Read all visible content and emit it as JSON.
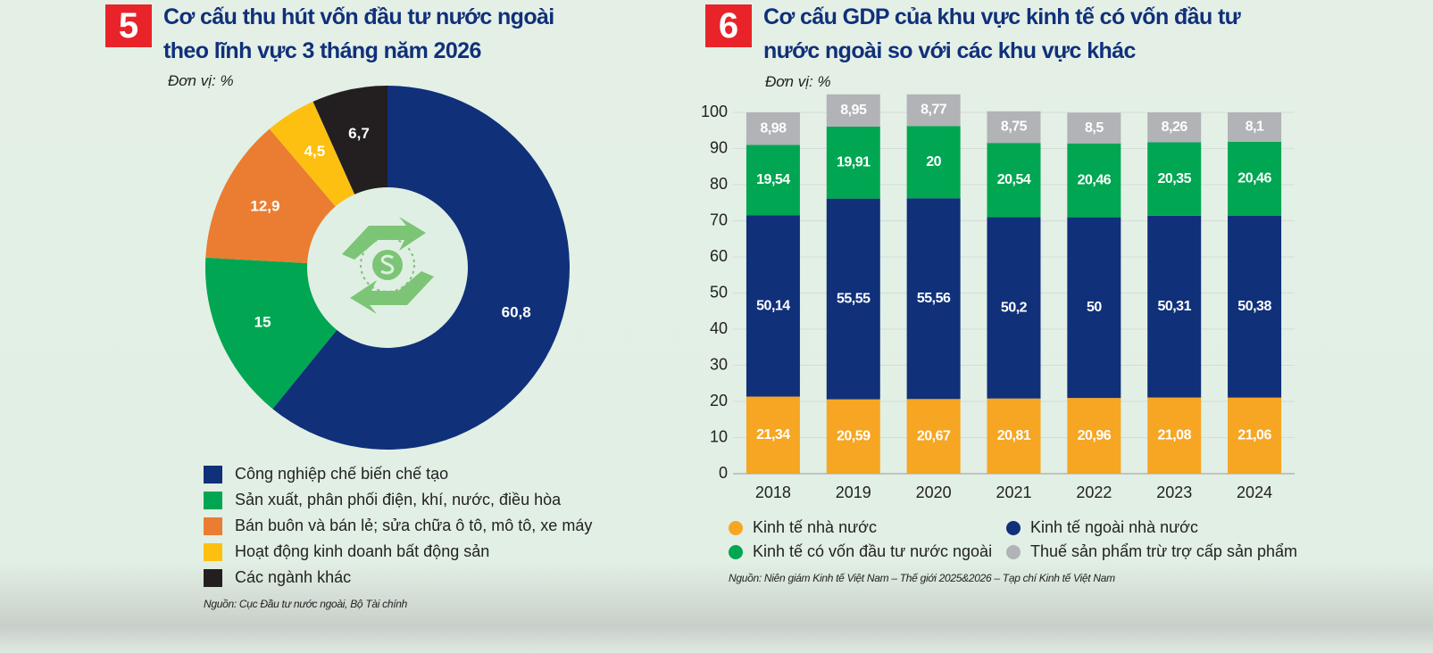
{
  "chart_data": [
    {
      "type": "pie",
      "number": "5",
      "title": "Cơ cấu thu hút vốn đầu tư nước ngoài theo lĩnh vực 3 tháng năm 2026",
      "unit": "Đơn vị: %",
      "categories": [
        "Công nghiệp chế biến chế tạo",
        "Sản xuất, phân phối điện, khí, nước, điều hòa",
        "Bán buôn và bán lẻ; sửa chữa ô tô, mô tô, xe máy",
        "Hoạt động kinh doanh bất động sản",
        "Các ngành khác"
      ],
      "values": [
        60.8,
        15,
        12.9,
        4.5,
        6.7
      ],
      "value_labels": [
        "60,8",
        "15",
        "12,9",
        "4,5",
        "6,7"
      ],
      "colors": [
        "#10307a",
        "#00a651",
        "#ea7d31",
        "#fdc010",
        "#231f20"
      ],
      "source": "Nguồn: Cục Đầu tư nước ngoài, Bộ Tài chính"
    },
    {
      "type": "bar",
      "stacked": true,
      "number": "6",
      "title": "Cơ cấu GDP của khu vực kinh tế có vốn đầu tư nước ngoài so với các khu vực khác",
      "unit": "Đơn vị: %",
      "categories": [
        "2018",
        "2019",
        "2020",
        "2021",
        "2022",
        "2023",
        "2024"
      ],
      "series": [
        {
          "name": "Kinh tế nhà nước",
          "color": "#f6a623",
          "values": [
            21.34,
            20.59,
            20.67,
            20.81,
            20.96,
            21.08,
            21.06
          ],
          "value_labels": [
            "21,34",
            "20,59",
            "20,67",
            "20,81",
            "20,96",
            "21,08",
            "21,06"
          ]
        },
        {
          "name": "Kinh tế ngoài nhà nước",
          "color": "#10307a",
          "values": [
            50.14,
            55.55,
            55.56,
            50.2,
            50,
            50.31,
            50.38
          ],
          "value_labels": [
            "50,14",
            "55,55",
            "55,56",
            "50,2",
            "50",
            "50,31",
            "50,38"
          ]
        },
        {
          "name": "Kinh tế có vốn đầu tư nước ngoài",
          "color": "#00a651",
          "values": [
            19.54,
            19.91,
            20,
            20.54,
            20.46,
            20.35,
            20.46
          ],
          "value_labels": [
            "19,54",
            "19,91",
            "20",
            "20,54",
            "20,46",
            "20,35",
            "20,46"
          ]
        },
        {
          "name": "Thuế sản phẩm trừ trợ cấp sản phẩm",
          "color": "#b1b3b6",
          "values": [
            8.98,
            8.95,
            8.77,
            8.75,
            8.5,
            8.26,
            8.1
          ],
          "value_labels": [
            "8,98",
            "8,95",
            "8,77",
            "8,75",
            "8,5",
            "8,26",
            "8,1"
          ]
        }
      ],
      "ylim": [
        0,
        100
      ],
      "yticks": [
        0,
        10,
        20,
        30,
        40,
        50,
        60,
        70,
        80,
        90,
        100
      ],
      "grid": true,
      "source": "Nguồn: Niên giám Kinh tế Việt Nam – Thế giới 2025&2026 – Tạp chí Kinh tế Việt Nam"
    }
  ]
}
